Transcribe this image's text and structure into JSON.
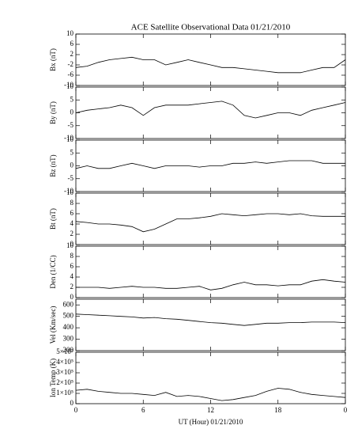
{
  "chart_data": [
    {
      "type": "line",
      "title": "ACE Satellite Observational Data   01/21/2010",
      "ylabel": "Bx (nT)",
      "x": [
        0,
        1,
        2,
        3,
        4,
        5,
        6,
        7,
        8,
        9,
        10,
        11,
        12,
        13,
        14,
        15,
        16,
        17,
        18,
        19,
        20,
        21,
        22,
        23,
        24
      ],
      "values": [
        -3,
        -2.5,
        -1,
        0,
        0.5,
        1,
        0,
        0,
        -2,
        -1,
        0,
        -1,
        -2,
        -3,
        -3,
        -3.5,
        -4,
        -4.5,
        -5,
        -5,
        -5,
        -4,
        -3,
        -3,
        0
      ],
      "color": "#000000",
      "xlim": [
        0,
        24
      ],
      "ylim": [
        -10,
        10
      ],
      "yticks": [
        -10,
        -6,
        -2,
        2,
        6,
        10
      ]
    },
    {
      "type": "line",
      "ylabel": "By (nT)",
      "x": [
        0,
        1,
        2,
        3,
        4,
        5,
        6,
        7,
        8,
        9,
        10,
        11,
        12,
        13,
        14,
        15,
        16,
        17,
        18,
        19,
        20,
        21,
        22,
        23,
        24
      ],
      "values": [
        0,
        1,
        1.5,
        2,
        3,
        2,
        -1,
        2,
        3,
        3,
        3,
        3.5,
        4,
        4.5,
        3,
        -1,
        -2,
        -1,
        0,
        0,
        -1,
        1,
        2,
        3,
        4
      ],
      "color": "#000000",
      "xlim": [
        0,
        24
      ],
      "ylim": [
        -10,
        10
      ],
      "yticks": [
        -10,
        -5,
        0,
        5,
        10
      ]
    },
    {
      "type": "line",
      "ylabel": "Bz (nT)",
      "x": [
        0,
        1,
        2,
        3,
        4,
        5,
        6,
        7,
        8,
        9,
        10,
        11,
        12,
        13,
        14,
        15,
        16,
        17,
        18,
        19,
        20,
        21,
        22,
        23,
        24
      ],
      "values": [
        -1,
        0,
        -1,
        -1,
        0,
        1,
        0,
        -1,
        0,
        0,
        0,
        -0.5,
        0,
        0,
        1,
        1,
        1.5,
        1,
        1.5,
        2,
        2,
        2,
        1,
        1,
        1
      ],
      "color": "#000000",
      "xlim": [
        0,
        24
      ],
      "ylim": [
        -10,
        10
      ],
      "yticks": [
        -10,
        -5,
        0,
        5,
        10
      ]
    },
    {
      "type": "line",
      "ylabel": "Bt (nT)",
      "x": [
        0,
        1,
        2,
        3,
        4,
        5,
        6,
        7,
        8,
        9,
        10,
        11,
        12,
        13,
        14,
        15,
        16,
        17,
        18,
        19,
        20,
        21,
        22,
        23,
        24
      ],
      "values": [
        4.5,
        4.3,
        4,
        4,
        3.8,
        3.5,
        2.5,
        3,
        4,
        5,
        5,
        5.2,
        5.5,
        6,
        5.8,
        5.6,
        5.8,
        6,
        6,
        5.8,
        6,
        5.6,
        5.5,
        5.5,
        5.5
      ],
      "color": "#000000",
      "xlim": [
        0,
        24
      ],
      "ylim": [
        0,
        10
      ],
      "yticks": [
        0,
        2,
        4,
        6,
        8,
        10
      ]
    },
    {
      "type": "line",
      "ylabel": "Den (1/CC)",
      "x": [
        0,
        1,
        2,
        3,
        4,
        5,
        6,
        7,
        8,
        9,
        10,
        11,
        12,
        13,
        14,
        15,
        16,
        17,
        18,
        19,
        20,
        21,
        22,
        23,
        24
      ],
      "values": [
        2,
        2,
        2,
        1.8,
        2,
        2.2,
        2,
        2,
        1.8,
        1.8,
        2,
        2.2,
        1.5,
        1.8,
        2.5,
        3,
        2.5,
        2.5,
        2.3,
        2.5,
        2.5,
        3.2,
        3.5,
        3.2,
        3
      ],
      "color": "#000000",
      "xlim": [
        0,
        24
      ],
      "ylim": [
        0,
        10
      ],
      "yticks": [
        0,
        2,
        4,
        6,
        8,
        10
      ]
    },
    {
      "type": "line",
      "ylabel": "Vel (Km/sec)",
      "x": [
        0,
        1,
        2,
        3,
        4,
        5,
        6,
        7,
        8,
        9,
        10,
        11,
        12,
        13,
        14,
        15,
        16,
        17,
        18,
        19,
        20,
        21,
        22,
        23,
        24
      ],
      "values": [
        520,
        515,
        510,
        505,
        500,
        495,
        485,
        490,
        480,
        475,
        465,
        455,
        445,
        440,
        430,
        420,
        430,
        440,
        440,
        445,
        445,
        450,
        450,
        450,
        445
      ],
      "color": "#000000",
      "xlim": [
        0,
        24
      ],
      "ylim": [
        200,
        650
      ],
      "yticks": [
        200,
        300,
        400,
        500,
        600
      ]
    },
    {
      "type": "line",
      "ylabel": "Ion Temp (K)",
      "xlabel": "UT (Hour)   01/21/2010",
      "x": [
        0,
        1,
        2,
        3,
        4,
        5,
        6,
        7,
        8,
        9,
        10,
        11,
        12,
        13,
        14,
        15,
        16,
        17,
        18,
        19,
        20,
        21,
        22,
        23,
        24
      ],
      "values": [
        130000,
        140000,
        120000,
        110000,
        100000,
        100000,
        90000,
        80000,
        110000,
        70000,
        80000,
        70000,
        50000,
        30000,
        40000,
        60000,
        80000,
        120000,
        150000,
        140000,
        110000,
        90000,
        80000,
        70000,
        60000
      ],
      "color": "#000000",
      "xlim": [
        0,
        24
      ],
      "ylim": [
        0,
        500000
      ],
      "yticks": [
        0,
        {
          "value": 100000,
          "label": "1×10⁵"
        },
        {
          "value": 200000,
          "label": "2×10⁵"
        },
        {
          "value": 300000,
          "label": "3×10⁵"
        },
        {
          "value": 400000,
          "label": "4×10⁵"
        },
        {
          "value": 500000,
          "label": "5×10⁵"
        }
      ],
      "xticks": [
        0,
        6,
        12,
        18,
        {
          "value": 24,
          "label": "0"
        }
      ]
    }
  ]
}
